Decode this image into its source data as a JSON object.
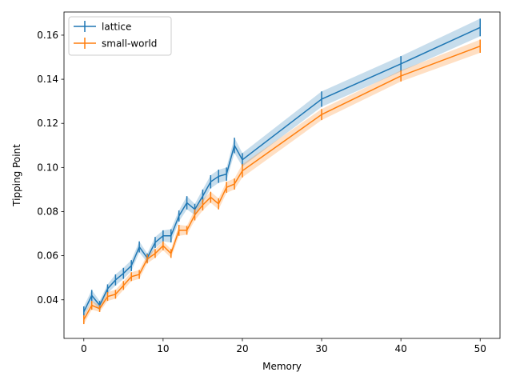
{
  "chart_data": {
    "type": "line",
    "xlabel": "Memory",
    "ylabel": "Tipping Point",
    "xlim": [
      -2.5,
      52.5
    ],
    "ylim": [
      0.0225,
      0.1705
    ],
    "xticks": [
      0,
      10,
      20,
      30,
      40,
      50
    ],
    "xtick_labels": [
      "0",
      "10",
      "20",
      "30",
      "40",
      "50"
    ],
    "yticks": [
      0.04,
      0.06,
      0.08,
      0.1,
      0.12,
      0.14,
      0.16
    ],
    "ytick_labels": [
      "0.04",
      "0.06",
      "0.08",
      "0.10",
      "0.12",
      "0.14",
      "0.16"
    ],
    "grid": false,
    "legend_position": "top-left",
    "x": [
      0,
      1,
      2,
      3,
      4,
      5,
      6,
      7,
      8,
      9,
      10,
      11,
      12,
      13,
      14,
      15,
      16,
      17,
      18,
      19,
      20,
      30,
      40,
      50
    ],
    "series": [
      {
        "name": "lattice",
        "color": "#1f77b4",
        "values": [
          0.0345,
          0.042,
          0.0375,
          0.045,
          0.049,
          0.052,
          0.0555,
          0.064,
          0.059,
          0.066,
          0.069,
          0.069,
          0.078,
          0.084,
          0.081,
          0.087,
          0.0935,
          0.096,
          0.097,
          0.11,
          0.1035,
          0.131,
          0.147,
          0.1635
        ],
        "errors": [
          0.0025,
          0.0025,
          0.002,
          0.002,
          0.0025,
          0.0025,
          0.0025,
          0.0025,
          0.002,
          0.0025,
          0.0025,
          0.003,
          0.0025,
          0.003,
          0.0025,
          0.003,
          0.003,
          0.003,
          0.003,
          0.0035,
          0.003,
          0.0035,
          0.0035,
          0.004
        ]
      },
      {
        "name": "small-world",
        "color": "#ff7f0e",
        "values": [
          0.031,
          0.0375,
          0.036,
          0.0415,
          0.0425,
          0.0465,
          0.0505,
          0.0515,
          0.0585,
          0.061,
          0.0645,
          0.061,
          0.0715,
          0.0715,
          0.0785,
          0.083,
          0.0865,
          0.0835,
          0.091,
          0.0925,
          0.0985,
          0.124,
          0.1415,
          0.155
        ],
        "errors": [
          0.002,
          0.002,
          0.0015,
          0.002,
          0.002,
          0.002,
          0.002,
          0.002,
          0.002,
          0.002,
          0.002,
          0.002,
          0.0025,
          0.002,
          0.0025,
          0.0025,
          0.0025,
          0.0025,
          0.0025,
          0.0025,
          0.003,
          0.0025,
          0.0025,
          0.003
        ]
      }
    ]
  }
}
